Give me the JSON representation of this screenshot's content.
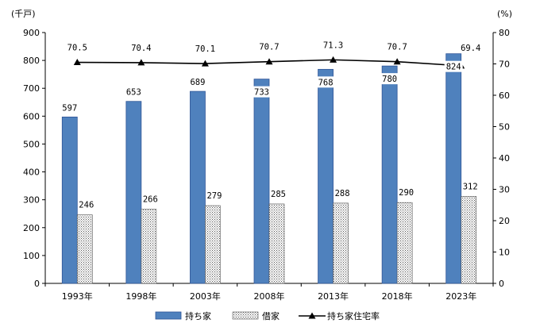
{
  "chart_data": {
    "type": "bar",
    "categories": [
      "1993年",
      "1998年",
      "2003年",
      "2008年",
      "2013年",
      "2018年",
      "2023年"
    ],
    "series": [
      {
        "name": "持ち家",
        "type": "bar",
        "axis": "left",
        "color": "#4F81BD",
        "pattern": "solid",
        "values": [
          597,
          653,
          689,
          733,
          768,
          780,
          824
        ]
      },
      {
        "name": "借家",
        "type": "bar",
        "axis": "left",
        "color": "#000000",
        "pattern": "dotted",
        "values": [
          246,
          266,
          279,
          285,
          288,
          290,
          312
        ]
      },
      {
        "name": "持ち家住宅率",
        "type": "line",
        "axis": "right",
        "color": "#000000",
        "marker": "triangle",
        "values": [
          70.5,
          70.4,
          70.1,
          70.7,
          71.3,
          70.7,
          69.4
        ],
        "labels": [
          "70.5",
          "70.4",
          "70.1",
          "70.7",
          "71.3",
          "70.7",
          "69.4"
        ]
      }
    ],
    "y_left": {
      "unit": "(千戸)",
      "range": [
        0,
        900
      ],
      "ticks": [
        0,
        100,
        200,
        300,
        400,
        500,
        600,
        700,
        800,
        900
      ]
    },
    "y_right": {
      "unit": "(%)",
      "range": [
        0,
        80
      ],
      "ticks": [
        0,
        10,
        20,
        30,
        40,
        50,
        60,
        70,
        80
      ]
    },
    "grid": false,
    "legend": "bottom"
  }
}
